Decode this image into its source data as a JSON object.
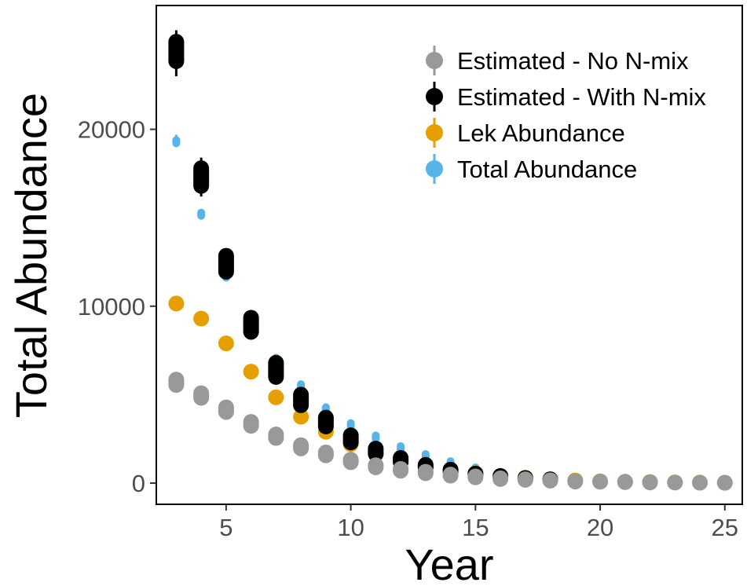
{
  "chart_data": {
    "type": "scatter",
    "title": "",
    "xlabel": "Year",
    "ylabel": "Total Abundance",
    "xlim": [
      2.2,
      25.7
    ],
    "ylim": [
      -1200,
      27000
    ],
    "x_ticks": [
      5,
      10,
      15,
      20,
      25
    ],
    "y_ticks": [
      0,
      10000,
      20000
    ],
    "x_tick_labels": [
      "5",
      "10",
      "15",
      "20",
      "25"
    ],
    "y_tick_labels": [
      "0",
      "10000",
      "20000"
    ],
    "grid": false,
    "legend_position": "top-right",
    "series": [
      {
        "name": "Total Abundance",
        "color": "#56B4E9",
        "points": [
          {
            "x": 3,
            "y": 19300,
            "lo": 19000,
            "hi": 19700
          },
          {
            "x": 4,
            "y": 15200,
            "lo": 14900,
            "hi": 15500
          },
          {
            "x": 5,
            "y": 11700,
            "lo": 11450,
            "hi": 11950
          },
          {
            "x": 7,
            "y": 7000,
            "lo": 6600,
            "hi": 7300
          },
          {
            "x": 8,
            "y": 5500,
            "lo": 5200,
            "hi": 5750
          },
          {
            "x": 9,
            "y": 4200,
            "lo": 3900,
            "hi": 4500
          },
          {
            "x": 10,
            "y": 3300,
            "lo": 3000,
            "hi": 3500
          },
          {
            "x": 11,
            "y": 2600,
            "lo": 2350,
            "hi": 2800
          },
          {
            "x": 12,
            "y": 2000,
            "lo": 1800,
            "hi": 2200
          },
          {
            "x": 13,
            "y": 1550,
            "lo": 1350,
            "hi": 1750
          },
          {
            "x": 14,
            "y": 1150,
            "lo": 1000,
            "hi": 1300
          },
          {
            "x": 15,
            "y": 800,
            "lo": 650,
            "hi": 950
          },
          {
            "x": 16,
            "y": 550,
            "lo": 400,
            "hi": 700
          },
          {
            "x": 17,
            "y": 350,
            "lo": 250,
            "hi": 450
          }
        ]
      },
      {
        "name": "Lek Abundance",
        "color": "#E69F00",
        "points": [
          {
            "x": 3,
            "y": 10150
          },
          {
            "x": 4,
            "y": 9300
          },
          {
            "x": 5,
            "y": 7900
          },
          {
            "x": 6,
            "y": 6300
          },
          {
            "x": 7,
            "y": 4850
          },
          {
            "x": 8,
            "y": 3750
          },
          {
            "x": 9,
            "y": 2900
          },
          {
            "x": 10,
            "y": 2200
          },
          {
            "x": 11,
            "y": 1650
          },
          {
            "x": 12,
            "y": 1250
          },
          {
            "x": 13,
            "y": 950
          },
          {
            "x": 14,
            "y": 750
          },
          {
            "x": 15,
            "y": 550
          },
          {
            "x": 16,
            "y": 400
          },
          {
            "x": 17,
            "y": 300
          },
          {
            "x": 18,
            "y": 200
          },
          {
            "x": 19,
            "y": 150
          },
          {
            "x": 20,
            "y": 100
          },
          {
            "x": 21,
            "y": 80
          },
          {
            "x": 22,
            "y": 60
          },
          {
            "x": 23,
            "y": 40
          },
          {
            "x": 24,
            "y": 30
          },
          {
            "x": 25,
            "y": 20
          }
        ]
      },
      {
        "name": "Estimated - With N-mix",
        "color": "#000000",
        "points": [
          {
            "x": 3,
            "y": 24400,
            "lo": 23000,
            "hi": 25600,
            "spread": 550
          },
          {
            "x": 4,
            "y": 17300,
            "lo": 16200,
            "hi": 18400,
            "spread": 500
          },
          {
            "x": 5,
            "y": 12400,
            "lo": 11700,
            "hi": 13200,
            "spread": 450
          },
          {
            "x": 6,
            "y": 8950,
            "lo": 8450,
            "hi": 9500,
            "spread": 400
          },
          {
            "x": 7,
            "y": 6400,
            "lo": 5950,
            "hi": 6950,
            "spread": 400
          },
          {
            "x": 8,
            "y": 4700,
            "lo": 4250,
            "hi": 5100,
            "spread": 300
          },
          {
            "x": 9,
            "y": 3450,
            "lo": 3100,
            "hi": 3800,
            "spread": 250
          },
          {
            "x": 10,
            "y": 2500,
            "lo": 2250,
            "hi": 2800,
            "spread": 200
          },
          {
            "x": 11,
            "y": 1800,
            "lo": 1600,
            "hi": 2050,
            "spread": 150
          },
          {
            "x": 12,
            "y": 1300,
            "lo": 1150,
            "hi": 1500,
            "spread": 120
          },
          {
            "x": 13,
            "y": 950,
            "lo": 850,
            "hi": 1100,
            "spread": 80
          },
          {
            "x": 14,
            "y": 700,
            "lo": 600,
            "hi": 800,
            "spread": 60
          },
          {
            "x": 15,
            "y": 500,
            "lo": 420,
            "hi": 580,
            "spread": 40
          },
          {
            "x": 16,
            "y": 370,
            "lo": 300,
            "hi": 440,
            "spread": 30
          },
          {
            "x": 17,
            "y": 270,
            "lo": 220,
            "hi": 320,
            "spread": 20
          },
          {
            "x": 18,
            "y": 200,
            "lo": 150,
            "hi": 250,
            "spread": 15
          }
        ]
      },
      {
        "name": "Estimated - No N-mix",
        "color": "#999999",
        "points": [
          {
            "x": 3,
            "y": 5700,
            "spread": 150
          },
          {
            "x": 4,
            "y": 4950,
            "spread": 130
          },
          {
            "x": 5,
            "y": 4150,
            "spread": 130
          },
          {
            "x": 6,
            "y": 3350,
            "spread": 110
          },
          {
            "x": 7,
            "y": 2650,
            "spread": 100
          },
          {
            "x": 8,
            "y": 2050,
            "spread": 90
          },
          {
            "x": 9,
            "y": 1650,
            "spread": 80
          },
          {
            "x": 10,
            "y": 1250,
            "spread": 70
          },
          {
            "x": 11,
            "y": 950,
            "spread": 60
          },
          {
            "x": 12,
            "y": 750,
            "spread": 50
          },
          {
            "x": 13,
            "y": 600,
            "spread": 40
          },
          {
            "x": 14,
            "y": 450,
            "spread": 30
          },
          {
            "x": 15,
            "y": 350,
            "spread": 25
          },
          {
            "x": 16,
            "y": 250,
            "spread": 20
          },
          {
            "x": 17,
            "y": 200,
            "spread": 15
          },
          {
            "x": 18,
            "y": 150,
            "spread": 10
          },
          {
            "x": 19,
            "y": 100,
            "spread": 10
          },
          {
            "x": 20,
            "y": 80,
            "spread": 5
          },
          {
            "x": 21,
            "y": 60,
            "spread": 5
          },
          {
            "x": 22,
            "y": 40,
            "spread": 5
          },
          {
            "x": 23,
            "y": 30,
            "spread": 0
          },
          {
            "x": 24,
            "y": 20,
            "spread": 0
          },
          {
            "x": 25,
            "y": 15,
            "spread": 0
          }
        ]
      }
    ],
    "legend": [
      {
        "label": "Estimated - No N-mix",
        "color": "#999999"
      },
      {
        "label": "Estimated - With N-mix",
        "color": "#000000"
      },
      {
        "label": "Lek Abundance",
        "color": "#E69F00"
      },
      {
        "label": "Total Abundance",
        "color": "#56B4E9"
      }
    ]
  }
}
